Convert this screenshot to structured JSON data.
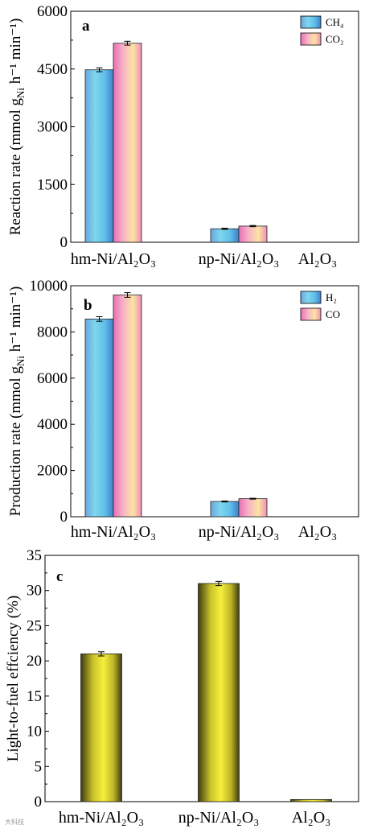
{
  "chart_data": [
    {
      "panel": "a",
      "type": "bar",
      "categories": [
        "hm-Ni/Al₂O₃",
        "np-Ni/Al₂O₃",
        "Al₂O₃"
      ],
      "series": [
        {
          "name": "CH₄",
          "values": [
            4480,
            350,
            0
          ],
          "errors": [
            50,
            15,
            0
          ]
        },
        {
          "name": "CO₂",
          "values": [
            5170,
            420,
            0
          ],
          "errors": [
            50,
            15,
            0
          ]
        }
      ],
      "ylabel_main": "Reaction rate (mmol g",
      "ylabel_sub": "Ni",
      "ylabel_tail": " h⁻¹ min⁻¹)",
      "ylim": [
        0,
        6000
      ],
      "yticks": [
        "0",
        "1500",
        "3000",
        "4500",
        "6000"
      ],
      "legend_position": "top-right"
    },
    {
      "panel": "b",
      "type": "bar",
      "categories": [
        "hm-Ni/Al₂O₃",
        "np-Ni/Al₂O₃",
        "Al₂O₃"
      ],
      "series": [
        {
          "name": "H₂",
          "values": [
            8560,
            660,
            0
          ],
          "errors": [
            100,
            20,
            0
          ]
        },
        {
          "name": "CO",
          "values": [
            9600,
            780,
            0
          ],
          "errors": [
            100,
            20,
            0
          ]
        }
      ],
      "ylabel_main": "Production rate (mmol g",
      "ylabel_sub": "Ni",
      "ylabel_tail": " h⁻¹ min⁻¹)",
      "ylim": [
        0,
        10000
      ],
      "yticks": [
        "0",
        "2000",
        "4000",
        "6000",
        "8000",
        "10000"
      ],
      "legend_position": "top-right"
    },
    {
      "panel": "c",
      "type": "bar",
      "categories": [
        "hm-Ni/Al₂O₃",
        "np-Ni/Al₂O₃",
        "Al₂O₃"
      ],
      "series": [
        {
          "values": [
            21.0,
            31.0,
            0.3
          ],
          "errors": [
            0.3,
            0.3,
            0
          ]
        }
      ],
      "ylabel_main": "Light-to-fuel effciency (%)",
      "ylim": [
        0,
        35
      ],
      "yticks": [
        "0",
        "5",
        "10",
        "15",
        "20",
        "25",
        "30",
        "35"
      ]
    }
  ],
  "watermark": "大科技"
}
